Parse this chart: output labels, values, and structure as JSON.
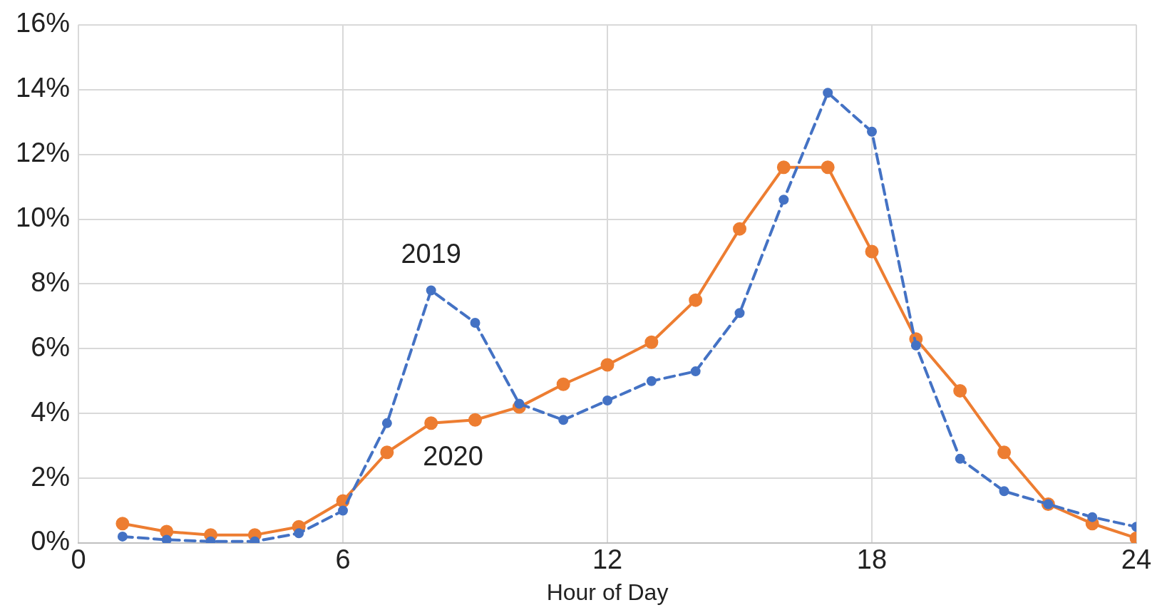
{
  "chart_data": {
    "type": "line",
    "xlabel": "Hour of Day",
    "xlim": [
      0,
      24
    ],
    "xticks": [
      0,
      6,
      12,
      18,
      24
    ],
    "ylim": [
      0,
      16
    ],
    "yticks": [
      {
        "value": 0,
        "label": "0%"
      },
      {
        "value": 2,
        "label": "2%"
      },
      {
        "value": 4,
        "label": "4%"
      },
      {
        "value": 6,
        "label": "6%"
      },
      {
        "value": 8,
        "label": "8%"
      },
      {
        "value": 10,
        "label": "10%"
      },
      {
        "value": 12,
        "label": "12%"
      },
      {
        "value": 14,
        "label": "14%"
      },
      {
        "value": 16,
        "label": "16%"
      }
    ],
    "x": [
      1,
      2,
      3,
      4,
      5,
      6,
      7,
      8,
      9,
      10,
      11,
      12,
      13,
      14,
      15,
      16,
      17,
      18,
      19,
      20,
      21,
      22,
      23,
      24
    ],
    "grid": true,
    "legend": false,
    "marker": "circle",
    "series": [
      {
        "name": "2019",
        "color": "#4472c4",
        "line_style": "dashed",
        "values": [
          0.2,
          0.1,
          0.05,
          0.05,
          0.3,
          1.0,
          3.7,
          7.8,
          6.8,
          4.3,
          3.8,
          4.4,
          5.0,
          5.3,
          7.1,
          10.6,
          13.9,
          12.7,
          6.1,
          2.6,
          1.6,
          1.2,
          0.8,
          0.5
        ]
      },
      {
        "name": "2020",
        "color": "#ed7d31",
        "line_style": "solid",
        "values": [
          0.6,
          0.35,
          0.25,
          0.25,
          0.5,
          1.3,
          2.8,
          3.7,
          3.8,
          4.2,
          4.9,
          5.5,
          6.2,
          7.5,
          9.7,
          11.6,
          11.6,
          9.0,
          6.3,
          4.7,
          2.8,
          1.2,
          0.6,
          0.15
        ]
      }
    ]
  }
}
